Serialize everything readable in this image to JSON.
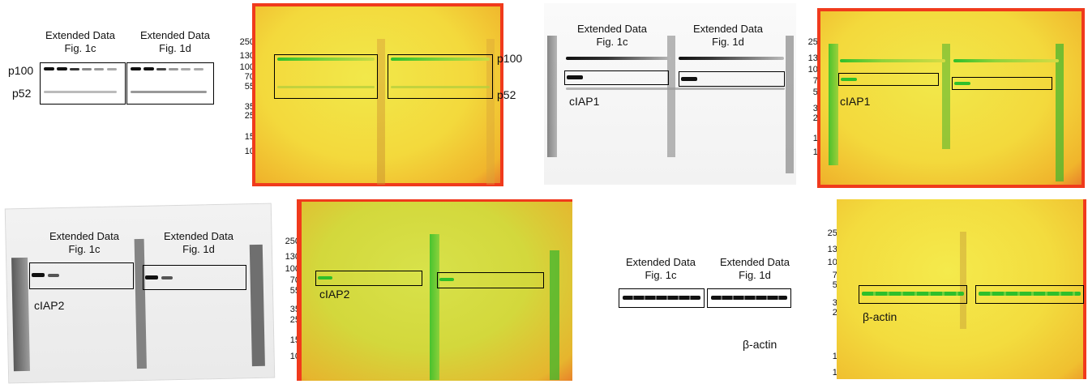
{
  "headers": {
    "fig1c_line1": "Extended Data",
    "fig1c_line2": "Fig. 1c",
    "fig1d_line1": "Extended Data",
    "fig1d_line2": "Fig. 1d"
  },
  "proteins": {
    "p100": "p100",
    "p52": "p52",
    "ciap1": "cIAP1",
    "ciap2": "cIAP2",
    "bactin": "β-actin"
  },
  "markers": [
    "250",
    "130",
    "100",
    "70",
    "55",
    "35",
    "25",
    "15",
    "10"
  ],
  "colors": {
    "red_frame": "#f03a1c",
    "yellow_blot": "#f2e84a",
    "green_band": "#2fbf2a",
    "gray_band": "#1a1a1a"
  }
}
